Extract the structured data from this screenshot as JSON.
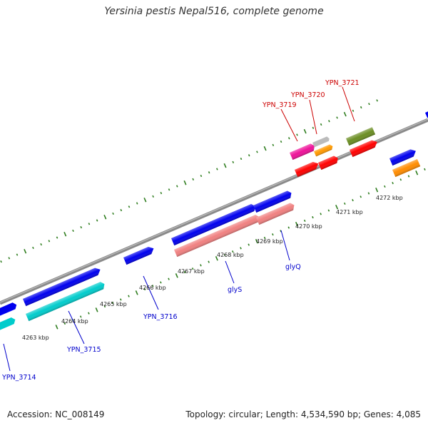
{
  "title": "Yersinia pestis Nepal516, complete genome",
  "accession": "Accession: NC_008149",
  "stats": "Topology: circular; Length: 4,534,590 bp; Genes: 4,085",
  "colors": {
    "backbone": "#8a8a8a",
    "tick": "#2e7d1e",
    "label_upper": "#cc0000",
    "label_lower": "#0000cc"
  },
  "kbp_labels": [
    "4263 kbp",
    "4264 kbp",
    "4265 kbp",
    "4266 kbp",
    "4267 kbp",
    "4268 kbp",
    "4269 kbp",
    "4270 kbp",
    "4271 kbp",
    "4272 kbp"
  ],
  "gene_labels": {
    "ypn3714": "YPN_3714",
    "ypn3715": "YPN_3715",
    "ypn3716": "YPN_3716",
    "glys": "glyS",
    "glyq": "glyQ",
    "ypn3719": "YPN_3719",
    "ypn3720": "YPN_3720",
    "ypn3721": "YPN_3721"
  }
}
